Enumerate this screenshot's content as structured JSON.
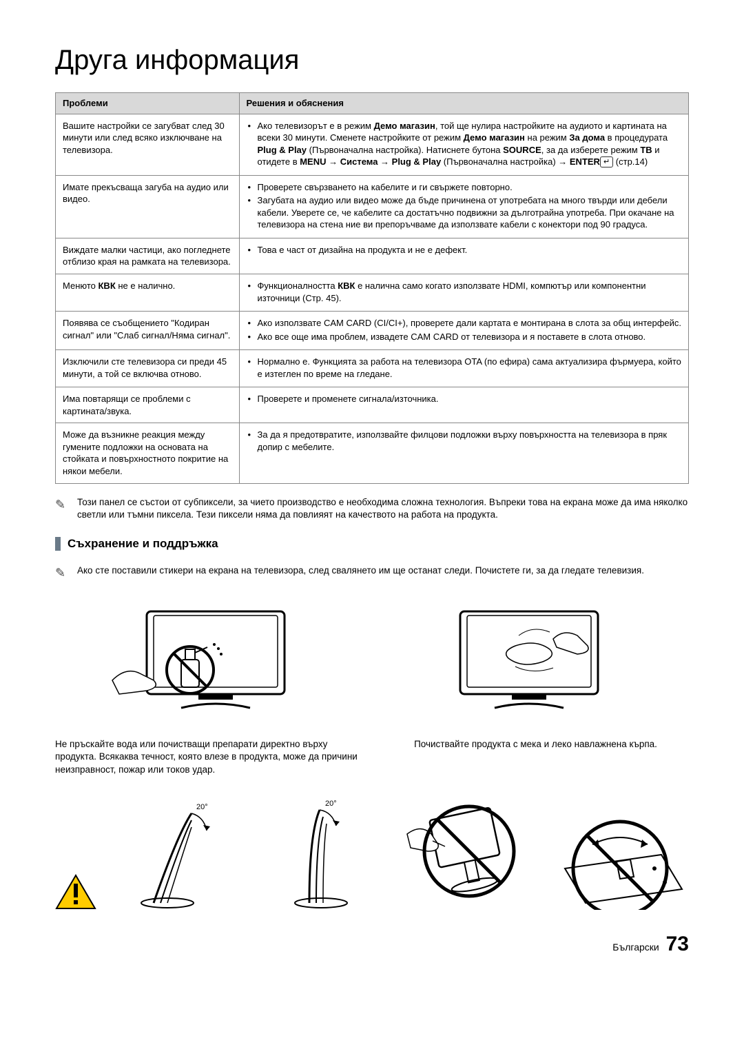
{
  "page_title": "Друга информация",
  "table": {
    "head_problem": "Проблеми",
    "head_solution": "Решения и обяснения",
    "rows": [
      {
        "problem": "Вашите настройки се загубват след 30 минути или след всяко изключване на телевизора.",
        "solutions": [
          "Ако телевизорът е в режим <b>Демо магазин</b>, той ще нулира настройките на аудиото и картината на всеки 30 минути. Сменете настройките от режим <b>Демо магазин</b> на режим <b>За дома</b> в процедурата <b>Plug & Play</b> (Първоначална настройка). Натиснете бутона <b>SOURCE</b>, за да изберете режим <b>ТВ</b> и отидете в <b>MENU → Система → Plug & Play</b> (Първоначална настройка) → <b>ENTER</b><span class=\"enter-key\">↵</span> (стр.14)"
        ]
      },
      {
        "problem": "Имате прекъсваща загуба на аудио или видео.",
        "solutions": [
          "Проверете свързването на кабелите и ги свържете повторно.",
          "Загубата на аудио или видео може да бъде причинена от употребата на много твърди или дебели кабели. Уверете се, че кабелите са достатъчно подвижни за дълготрайна употреба. При окачане на телевизора на стена ние ви препоръчваме да използвате кабели с конектори под 90 градуса."
        ]
      },
      {
        "problem": "Виждате малки частици, ако погледнете отблизо края на рамката на телевизора.",
        "solutions": [
          "Това е част от дизайна на продукта и не е дефект."
        ]
      },
      {
        "problem": "Менюто <b>КВК</b> не е налично.",
        "solutions": [
          "Функционалността <b>КВК</b> е налична само когато използвате HDMI, компютър или компонентни източници (Стр. 45)."
        ]
      },
      {
        "problem": "Появява се съобщението \"Кодиран сигнал\" или \"Слаб сигнал/Няма сигнал\".",
        "solutions": [
          "Ако използвате CAM CARD (CI/CI+), проверете дали картата е монтирана в слота за общ интерфейс.",
          "Ако все още има проблем, извадете CAM CARD от телевизора и я поставете в слота отново."
        ]
      },
      {
        "problem": "Изключили сте телевизора си преди 45 минути, а той се включва отново.",
        "solutions": [
          "Нормално е. Функцията за работа на телевизора OTA (по ефира) сама актуализира фърмуера, който е изтеглен по време на гледане."
        ]
      },
      {
        "problem": "Има повтарящи се проблеми с картината/звука.",
        "solutions": [
          "Проверете и променете сигнала/източника."
        ]
      },
      {
        "problem": "Може да възникне реакция между гумените подложки на основата на стойката и повърхностното покритие на някои мебели.",
        "solutions": [
          "За да я предотвратите, използвайте филцови подложки върху повърхността на телевизора в пряк допир с мебелите."
        ]
      }
    ]
  },
  "note_pixels": "Този панел се състои от субпиксели, за чието производство е необходима сложна технология. Въпреки това на екрана може да има няколко светли или тъмни пиксела. Тези пиксели няма да повлияят на качеството на работа на продукта.",
  "section_storage": "Съхранение и поддръжка",
  "note_stickers": "Ако сте поставили стикери на екрана на телевизора, след свалянето им ще останат следи. Почистете ги, за да гледате телевизия.",
  "care_left": "Не пръскайте вода или почистващи препарати директно върху продукта. Всякаква течност, която влезе в продукта, може да причини неизправност, пожар или токов удар.",
  "care_right": "Почиствайте продукта с мека и леко навлажнена кърпа.",
  "tilt_label_1": "20°",
  "tilt_label_2": "20°",
  "footer_lang": "Български",
  "footer_page": "73",
  "colors": {
    "header_bg": "#d9d9d9",
    "border": "#888888",
    "section_bar": "#6a7a88",
    "warn_yellow": "#ffcc00",
    "warn_red": "#cc0000",
    "prohibit_red": "#cc0000"
  }
}
